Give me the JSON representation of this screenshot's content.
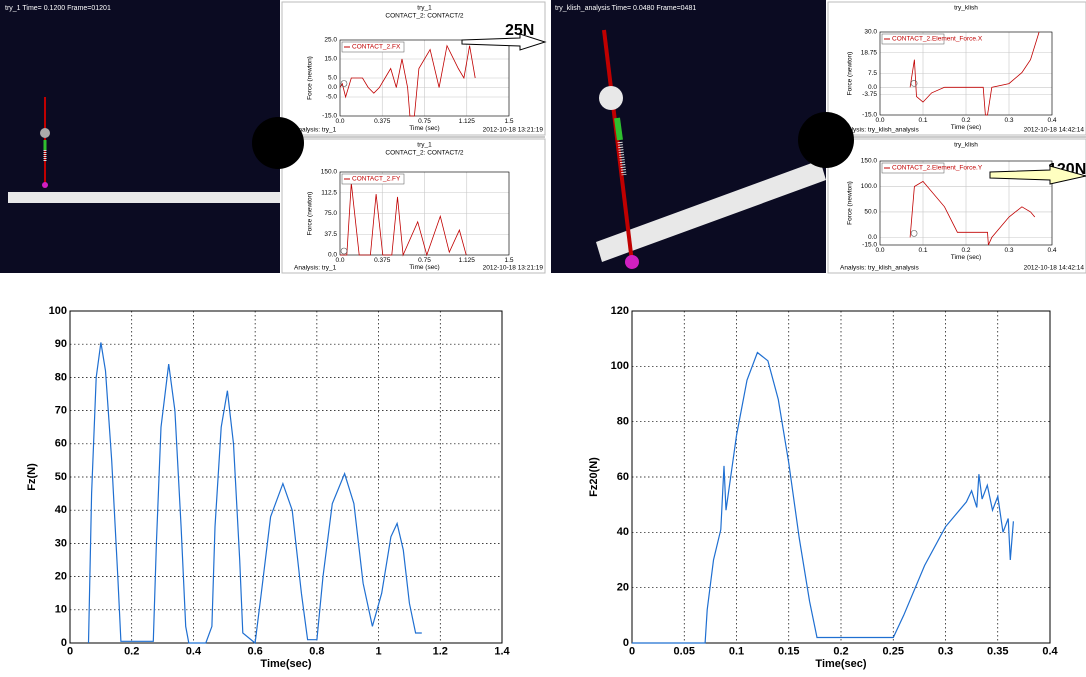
{
  "screenshots": [
    {
      "header": "try_1   Time=  0.1200  Frame=01201"
    },
    {
      "header": "try_klish_analysis   Time=  0.0480  Frame=0481"
    }
  ],
  "chart_data": [
    {
      "type": "line",
      "title": "try_1",
      "subtitle": "CONTACT_2: CONTACT/2",
      "xlabel": "Time (sec)",
      "ylabel": "Force (newton)",
      "footer_left": "Analysis:  try_1",
      "footer_right": "2012-10-18 13:21:19",
      "annotation": "25N",
      "xlim": [
        0,
        1.5
      ],
      "ylim": [
        -15,
        25
      ],
      "xticks": [
        {
          "value": 0,
          "label": "0.0"
        },
        0.375,
        0.75,
        1.125,
        1.5
      ],
      "yticks": [
        {
          "value": -15,
          "label": "-15.0"
        },
        {
          "value": -5,
          "label": "-5.0"
        },
        {
          "value": 0,
          "label": "0.0"
        },
        {
          "value": 5,
          "label": "5.0"
        },
        {
          "value": 15,
          "label": "15.0"
        },
        {
          "value": 25,
          "label": "25.0"
        }
      ],
      "grid": true,
      "x": [
        0,
        0.02,
        0.05,
        0.1,
        0.2,
        0.25,
        0.3,
        0.35,
        0.45,
        0.5,
        0.55,
        0.6,
        0.62,
        0.66,
        0.7,
        0.8,
        0.88,
        0.95,
        1.05,
        1.1,
        1.15,
        1.2
      ],
      "series": [
        {
          "name": "CONTACT_2.FX",
          "color": "#c00000",
          "values": [
            0,
            2,
            -5,
            5,
            5,
            0,
            -3,
            0,
            10,
            0,
            15,
            0,
            -15,
            -15,
            10,
            20,
            0,
            22,
            10,
            5,
            22,
            5
          ]
        }
      ]
    },
    {
      "type": "line",
      "title": "try_1",
      "subtitle": "CONTACT_2: CONTACT/2",
      "xlabel": "Time (sec)",
      "ylabel": "Force (newton)",
      "footer_left": "Analysis:  try_1",
      "footer_right": "2012-10-18 13:21:19",
      "xlim": [
        0,
        1.5
      ],
      "ylim": [
        0,
        150
      ],
      "xticks": [
        {
          "value": 0,
          "label": "0.0"
        },
        0.375,
        0.75,
        1.125,
        1.5
      ],
      "yticks": [
        {
          "value": 0,
          "label": "0.0"
        },
        37.5,
        {
          "value": 75,
          "label": "75.0"
        },
        112.5,
        {
          "value": 150,
          "label": "150.0"
        }
      ],
      "grid": true,
      "x": [
        0,
        0.06,
        0.1,
        0.17,
        0.27,
        0.32,
        0.38,
        0.46,
        0.51,
        0.56,
        0.69,
        0.77,
        0.89,
        0.97,
        1.06,
        1.12
      ],
      "series": [
        {
          "name": "CONTACT_2.FY",
          "color": "#c00000",
          "values": [
            0,
            0,
            130,
            0,
            0,
            110,
            0,
            0,
            105,
            0,
            60,
            0,
            70,
            5,
            45,
            0
          ]
        }
      ]
    },
    {
      "type": "line",
      "title": "try_klish",
      "xlabel": "Time (sec)",
      "ylabel": "Force (newton)",
      "footer_left": "Analysis:  try_klish_analysis",
      "footer_right": "2012-10-18 14:42:14",
      "xlim": [
        0,
        0.4
      ],
      "ylim": [
        -15,
        30
      ],
      "xticks": [
        {
          "value": 0,
          "label": "0.0"
        },
        0.1,
        0.2,
        0.3,
        0.4
      ],
      "yticks": [
        {
          "value": -15,
          "label": "-15.0"
        },
        -3.75,
        {
          "value": 0,
          "label": "0.0"
        },
        7.5,
        18.75,
        {
          "value": 30,
          "label": "30.0"
        }
      ],
      "grid": true,
      "x": [
        0.07,
        0.08,
        0.085,
        0.1,
        0.12,
        0.15,
        0.2,
        0.24,
        0.245,
        0.25,
        0.26,
        0.3,
        0.33,
        0.35,
        0.37
      ],
      "series": [
        {
          "name": "CONTACT_2.Element_Force.X",
          "color": "#c00000",
          "values": [
            0,
            15,
            -5,
            -8,
            -3,
            0,
            0,
            0,
            -15,
            -15,
            0,
            2,
            8,
            15,
            30
          ]
        }
      ]
    },
    {
      "type": "line",
      "title": "try_klish",
      "xlabel": "Time (sec)",
      "ylabel": "Force (newton)",
      "footer_left": "Analysis:  try_klish_analysis",
      "footer_right": "2012-10-18 14:42:14",
      "annotation": "120N",
      "xlim": [
        0,
        0.4
      ],
      "ylim": [
        -15,
        150
      ],
      "xticks": [
        {
          "value": 0,
          "label": "0.0"
        },
        0.1,
        0.2,
        0.3,
        0.4
      ],
      "yticks": [
        {
          "value": -15,
          "label": "-15.0"
        },
        {
          "value": 0,
          "label": "0.0"
        },
        {
          "value": 50,
          "label": "50.0"
        },
        {
          "value": 100,
          "label": "100.0"
        },
        {
          "value": 150,
          "label": "150.0"
        }
      ],
      "grid": true,
      "x": [
        0.07,
        0.08,
        0.1,
        0.15,
        0.18,
        0.25,
        0.252,
        0.26,
        0.3,
        0.33,
        0.35,
        0.36
      ],
      "series": [
        {
          "name": "CONTACT_2.Element_Force.Y",
          "color": "#c00000",
          "values": [
            0,
            100,
            110,
            60,
            10,
            10,
            -15,
            0,
            40,
            60,
            50,
            40
          ]
        }
      ]
    },
    {
      "type": "line",
      "xlabel": "Time(sec)",
      "ylabel": "Fz(N)",
      "xlim": [
        0,
        1.4
      ],
      "ylim": [
        0,
        100
      ],
      "xticks": [
        0,
        0.2,
        0.4,
        0.6,
        0.8,
        1,
        1.2,
        1.4
      ],
      "yticks": [
        0,
        10,
        20,
        30,
        40,
        50,
        60,
        70,
        80,
        90,
        100
      ],
      "grid": true,
      "x": [
        0.06,
        0.07,
        0.085,
        0.1,
        0.115,
        0.135,
        0.155,
        0.165,
        0.27,
        0.28,
        0.295,
        0.32,
        0.34,
        0.36,
        0.375,
        0.385,
        0.44,
        0.46,
        0.47,
        0.49,
        0.51,
        0.53,
        0.55,
        0.56,
        0.6,
        0.62,
        0.65,
        0.69,
        0.72,
        0.75,
        0.77,
        0.8,
        0.82,
        0.85,
        0.89,
        0.92,
        0.95,
        0.98,
        1.01,
        1.04,
        1.06,
        1.08,
        1.1,
        1.12,
        1.14
      ],
      "series": [
        {
          "color": "#1f6fd1",
          "values": [
            0,
            45,
            80,
            90.5,
            82,
            55,
            20,
            0.5,
            0.5,
            30,
            65,
            84,
            70,
            35,
            5,
            0,
            0,
            5,
            35,
            65,
            76,
            60,
            25,
            3,
            0,
            15,
            38,
            48,
            40,
            15,
            1,
            1,
            20,
            42,
            51,
            42,
            18,
            5,
            15,
            32,
            36,
            28,
            12,
            3,
            3
          ]
        }
      ]
    },
    {
      "type": "line",
      "xlabel": "Time(sec)",
      "ylabel": "Fz20(N)",
      "xlim": [
        0,
        0.4
      ],
      "ylim": [
        0,
        120
      ],
      "xticks": [
        0,
        0.05,
        0.1,
        0.15,
        0.2,
        0.25,
        0.3,
        0.35,
        0.4
      ],
      "yticks": [
        0,
        20,
        40,
        60,
        80,
        100,
        120
      ],
      "grid": true,
      "x": [
        0,
        0.07,
        0.072,
        0.078,
        0.085,
        0.088,
        0.09,
        0.1,
        0.11,
        0.12,
        0.13,
        0.14,
        0.15,
        0.16,
        0.17,
        0.177,
        0.25,
        0.26,
        0.28,
        0.3,
        0.32,
        0.325,
        0.33,
        0.332,
        0.335,
        0.34,
        0.345,
        0.35,
        0.355,
        0.36,
        0.362,
        0.365
      ],
      "series": [
        {
          "color": "#1f6fd1",
          "values": [
            0,
            0,
            12,
            30,
            41,
            64,
            48,
            75,
            95,
            105,
            102,
            88,
            65,
            38,
            15,
            2,
            2,
            10,
            28,
            42,
            51,
            55,
            49,
            61,
            52,
            57,
            48,
            53,
            40,
            45,
            30,
            44
          ]
        }
      ]
    }
  ]
}
